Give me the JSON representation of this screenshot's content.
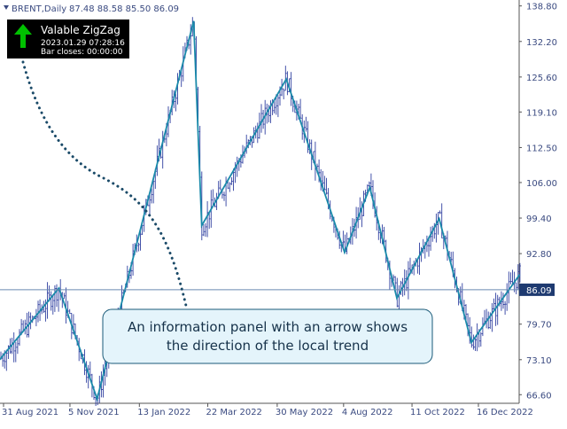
{
  "header": {
    "symbol": "BRENT,Daily",
    "ohlc": "87.48 88.58 85.50 86.09"
  },
  "info_panel": {
    "title": "Valable ZigZag",
    "datetime": "2023.01.29 07:28:16",
    "bar_closes": "Bar closes: 00:00:00",
    "icon": "arrow-up-icon",
    "arrow_color": "#00c000",
    "background": "#000000"
  },
  "callout": {
    "line1": "An information panel with an arrow shows",
    "line2": "the direction of the local trend",
    "background": "#e4f4fb",
    "border": "#1a5a78"
  },
  "colors": {
    "bars": "#3040a0",
    "zigzag": "#1a8aaa",
    "axis_text": "#3a4a80",
    "current_price_line": "#6a8ab0",
    "current_price_tag": "#1e3a70",
    "dotted_line": "#1a4a68"
  },
  "chart_data": {
    "type": "ohlc",
    "title": "BRENT,Daily",
    "y_ticks": [
      "138.80",
      "132.20",
      "125.60",
      "119.10",
      "112.50",
      "106.00",
      "99.40",
      "92.80",
      "86.09",
      "79.70",
      "73.10",
      "66.60"
    ],
    "x_ticks": [
      "31 Aug 2021",
      "5 Nov 2021",
      "13 Jan 2022",
      "22 Mar 2022",
      "30 May 2022",
      "4 Aug 2022",
      "11 Oct 2022",
      "16 Dec 2022"
    ],
    "ylim": [
      65.0,
      139.9
    ],
    "current_price": "86.09",
    "zigzag": [
      {
        "x": "2021-08-20",
        "y": 71.5
      },
      {
        "x": "2021-10-25",
        "y": 86.4
      },
      {
        "x": "2021-12-02",
        "y": 65.8
      },
      {
        "x": "2022-03-08",
        "y": 136.0
      },
      {
        "x": "2022-03-16",
        "y": 98.0
      },
      {
        "x": "2022-06-08",
        "y": 125.2
      },
      {
        "x": "2022-08-05",
        "y": 93.0
      },
      {
        "x": "2022-08-30",
        "y": 105.1
      },
      {
        "x": "2022-09-26",
        "y": 84.5
      },
      {
        "x": "2022-11-07",
        "y": 99.3
      },
      {
        "x": "2022-12-09",
        "y": 76.3
      },
      {
        "x": "2023-01-26",
        "y": 88.9
      }
    ],
    "grid": false,
    "legend": "none"
  }
}
